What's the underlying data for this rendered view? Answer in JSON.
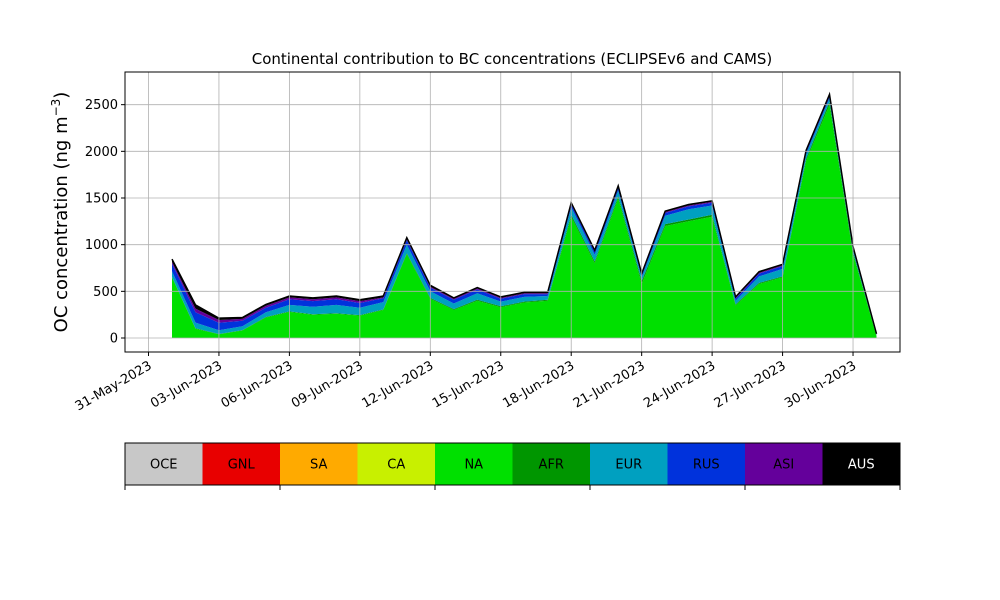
{
  "chart_data": {
    "type": "area",
    "title": "Continental contribution to BC concentrations (ECLIPSEv6 and CAMS)",
    "ylabel": "OC concentration (ng m",
    "ylabel_sup": "−3",
    "ylabel_close": ")",
    "xlim": [
      "2023-05-30",
      "2023-07-02"
    ],
    "ylim": [
      -150,
      2850
    ],
    "yticks": [
      0,
      500,
      1000,
      1500,
      2000,
      2500
    ],
    "ytick_labels": [
      "0",
      "500",
      "1000",
      "1500",
      "2000",
      "2500"
    ],
    "xticks": [
      "2023-05-31",
      "2023-06-03",
      "2023-06-06",
      "2023-06-09",
      "2023-06-12",
      "2023-06-15",
      "2023-06-18",
      "2023-06-21",
      "2023-06-24",
      "2023-06-27",
      "2023-06-30"
    ],
    "xtick_labels": [
      "31-May-2023",
      "03-Jun-2023",
      "06-Jun-2023",
      "09-Jun-2023",
      "12-Jun-2023",
      "15-Jun-2023",
      "18-Jun-2023",
      "21-Jun-2023",
      "24-Jun-2023",
      "27-Jun-2023",
      "30-Jun-2023"
    ],
    "grid": true,
    "total_line_color": "#000000",
    "legend": {
      "placement": "bottom colorbar",
      "entries": [
        {
          "name": "OCE",
          "color": "#c8c8c8"
        },
        {
          "name": "GNL",
          "color": "#e80000"
        },
        {
          "name": "SA",
          "color": "#ffaa00"
        },
        {
          "name": "CA",
          "color": "#c8f000"
        },
        {
          "name": "NA",
          "color": "#00e000"
        },
        {
          "name": "AFR",
          "color": "#009600"
        },
        {
          "name": "EUR",
          "color": "#00a0c0"
        },
        {
          "name": "RUS",
          "color": "#0032dc"
        },
        {
          "name": "ASI",
          "color": "#64009b"
        },
        {
          "name": "AUS",
          "color": "#000000"
        }
      ]
    },
    "dates": [
      "2023-06-01",
      "2023-06-02",
      "2023-06-03",
      "2023-06-04",
      "2023-06-05",
      "2023-06-06",
      "2023-06-07",
      "2023-06-08",
      "2023-06-09",
      "2023-06-10",
      "2023-06-11",
      "2023-06-12",
      "2023-06-13",
      "2023-06-14",
      "2023-06-15",
      "2023-06-16",
      "2023-06-17",
      "2023-06-18",
      "2023-06-19",
      "2023-06-20",
      "2023-06-21",
      "2023-06-22",
      "2023-06-23",
      "2023-06-24",
      "2023-06-25",
      "2023-06-26",
      "2023-06-27",
      "2023-06-28",
      "2023-06-29",
      "2023-06-30",
      "2023-07-01"
    ],
    "series": [
      {
        "name": "NA",
        "values": [
          650,
          100,
          40,
          80,
          220,
          280,
          250,
          260,
          240,
          300,
          900,
          420,
          300,
          400,
          330,
          380,
          400,
          1300,
          800,
          1500,
          580,
          1200,
          1250,
          1300,
          350,
          580,
          650,
          1900,
          2500,
          900,
          20
        ]
      },
      {
        "name": "AFR",
        "values": [
          5,
          5,
          3,
          5,
          5,
          5,
          5,
          5,
          5,
          5,
          10,
          10,
          10,
          10,
          10,
          10,
          10,
          20,
          20,
          20,
          30,
          20,
          20,
          20,
          10,
          10,
          10,
          20,
          30,
          20,
          5
        ]
      },
      {
        "name": "EUR",
        "values": [
          60,
          60,
          40,
          40,
          50,
          70,
          80,
          90,
          80,
          80,
          90,
          70,
          60,
          70,
          50,
          50,
          40,
          80,
          70,
          60,
          40,
          90,
          110,
          100,
          40,
          70,
          80,
          50,
          40,
          30,
          5
        ]
      },
      {
        "name": "RUS",
        "values": [
          80,
          110,
          80,
          60,
          50,
          60,
          60,
          60,
          50,
          40,
          50,
          40,
          40,
          40,
          30,
          30,
          20,
          30,
          30,
          30,
          20,
          30,
          30,
          30,
          20,
          30,
          30,
          20,
          20,
          10,
          5
        ]
      },
      {
        "name": "ASI",
        "values": [
          20,
          40,
          30,
          20,
          20,
          20,
          20,
          20,
          20,
          10,
          10,
          10,
          10,
          10,
          10,
          10,
          10,
          10,
          10,
          10,
          10,
          10,
          10,
          10,
          10,
          10,
          10,
          10,
          10,
          10,
          5
        ]
      },
      {
        "name": "AUS",
        "values": [
          30,
          40,
          20,
          15,
          15,
          15,
          15,
          15,
          15,
          15,
          15,
          15,
          10,
          10,
          10,
          10,
          10,
          10,
          10,
          10,
          10,
          10,
          10,
          10,
          10,
          10,
          10,
          10,
          10,
          10,
          5
        ]
      }
    ]
  }
}
